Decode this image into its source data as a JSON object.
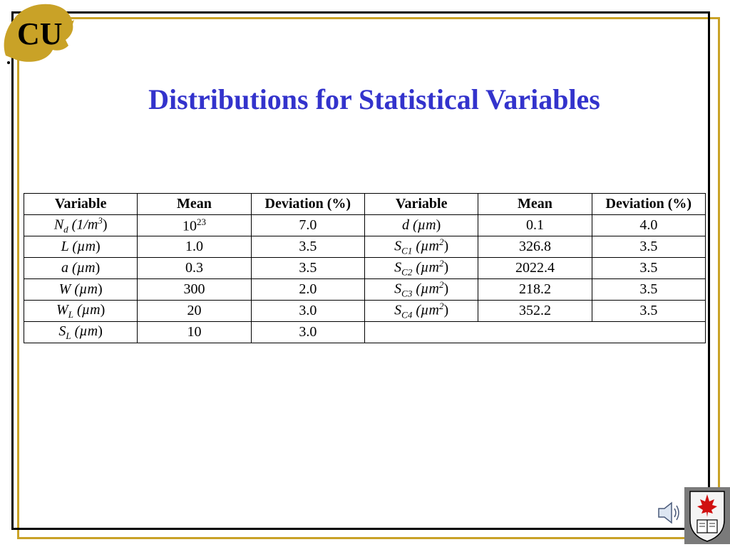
{
  "title": "Distributions for Statistical Variables",
  "headers": [
    "Variable",
    "Mean",
    "Deviation (%)",
    "Variable",
    "Mean",
    "Deviation (%)"
  ],
  "rows": [
    {
      "left": {
        "var_main": "N",
        "var_sub": "d",
        "unit_pre": " (1/m",
        "unit_sup": "3",
        "unit_post": ")",
        "mean_base": "10",
        "mean_exp": "23",
        "deviation": "7.0"
      },
      "right": {
        "var_main": "d",
        "var_sub": "",
        "unit_pre": " (µm",
        "unit_sup": "",
        "unit_post": ")",
        "mean": "0.1",
        "deviation": "4.0"
      }
    },
    {
      "left": {
        "var_main": "L",
        "var_sub": "",
        "unit_pre": " (µm",
        "unit_sup": "",
        "unit_post": ")",
        "mean": "1.0",
        "deviation": "3.5"
      },
      "right": {
        "var_main": "S",
        "var_sub": "C1",
        "unit_pre": " (µm",
        "unit_sup": "2",
        "unit_post": ")",
        "mean": "326.8",
        "deviation": "3.5"
      }
    },
    {
      "left": {
        "var_main": "a",
        "var_sub": "",
        "unit_pre": " (µm",
        "unit_sup": "",
        "unit_post": ")",
        "mean": "0.3",
        "deviation": "3.5"
      },
      "right": {
        "var_main": "S",
        "var_sub": "C2",
        "unit_pre": " (µm",
        "unit_sup": "2",
        "unit_post": ")",
        "mean": "2022.4",
        "deviation": "3.5"
      }
    },
    {
      "left": {
        "var_main": "W",
        "var_sub": "",
        "unit_pre": " (µm",
        "unit_sup": "",
        "unit_post": ")",
        "mean": "300",
        "deviation": "2.0"
      },
      "right": {
        "var_main": "S",
        "var_sub": "C3",
        "unit_pre": " (µm",
        "unit_sup": "2",
        "unit_post": ")",
        "mean": "218.2",
        "deviation": "3.5"
      }
    },
    {
      "left": {
        "var_main": "W",
        "var_sub": "L",
        "unit_pre": " (µm",
        "unit_sup": "",
        "unit_post": ")",
        "mean": "20",
        "deviation": "3.0"
      },
      "right": {
        "var_main": "S",
        "var_sub": "C4",
        "unit_pre": " (µm",
        "unit_sup": "2",
        "unit_post": ")",
        "mean": "352.2",
        "deviation": "3.5"
      }
    },
    {
      "left": {
        "var_main": "S",
        "var_sub": "L",
        "unit_pre": " (µm",
        "unit_sup": "",
        "unit_post": ")",
        "mean": "10",
        "deviation": "3.0"
      }
    }
  ],
  "logo_text": "CU",
  "colors": {
    "title": "#3333cc",
    "gold": "#c9a227",
    "frame": "#000000"
  },
  "icons": {
    "logo": "cu-buffalo-logo",
    "speaker": "speaker-icon",
    "crest": "university-crest-icon"
  }
}
